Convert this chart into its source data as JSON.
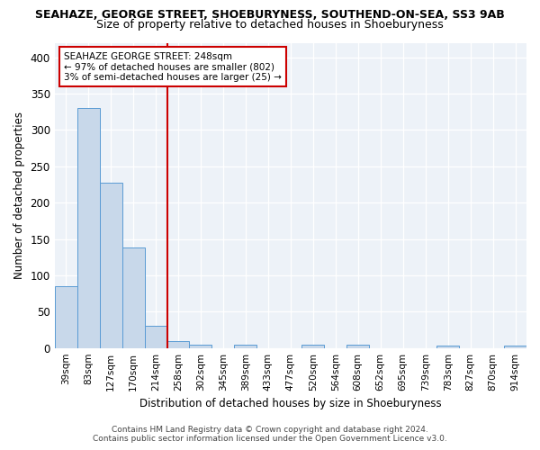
{
  "title": "SEAHAZE, GEORGE STREET, SHOEBURYNESS, SOUTHEND-ON-SEA, SS3 9AB",
  "subtitle": "Size of property relative to detached houses in Shoeburyness",
  "xlabel": "Distribution of detached houses by size in Shoeburyness",
  "ylabel": "Number of detached properties",
  "categories": [
    "39sqm",
    "83sqm",
    "127sqm",
    "170sqm",
    "214sqm",
    "258sqm",
    "302sqm",
    "345sqm",
    "389sqm",
    "433sqm",
    "477sqm",
    "520sqm",
    "564sqm",
    "608sqm",
    "652sqm",
    "695sqm",
    "739sqm",
    "783sqm",
    "827sqm",
    "870sqm",
    "914sqm"
  ],
  "values": [
    85,
    330,
    228,
    138,
    30,
    10,
    5,
    0,
    4,
    0,
    0,
    4,
    0,
    4,
    0,
    0,
    0,
    3,
    0,
    0,
    3
  ],
  "bar_color": "#c8d8ea",
  "bar_edge_color": "#5a9bd4",
  "red_line_x": 4.5,
  "red_line_color": "#cc0000",
  "ylim": [
    0,
    420
  ],
  "yticks": [
    0,
    50,
    100,
    150,
    200,
    250,
    300,
    350,
    400
  ],
  "annotation_line1": "SEAHAZE GEORGE STREET: 248sqm",
  "annotation_line2": "← 97% of detached houses are smaller (802)",
  "annotation_line3": "3% of semi-detached houses are larger (25) →",
  "annotation_box_color": "#ffffff",
  "annotation_box_edge": "#cc0000",
  "bg_color": "#edf2f8",
  "footer_line1": "Contains HM Land Registry data © Crown copyright and database right 2024.",
  "footer_line2": "Contains public sector information licensed under the Open Government Licence v3.0.",
  "title_fontsize": 9.0,
  "subtitle_fontsize": 9.0,
  "bar_width": 1.0
}
